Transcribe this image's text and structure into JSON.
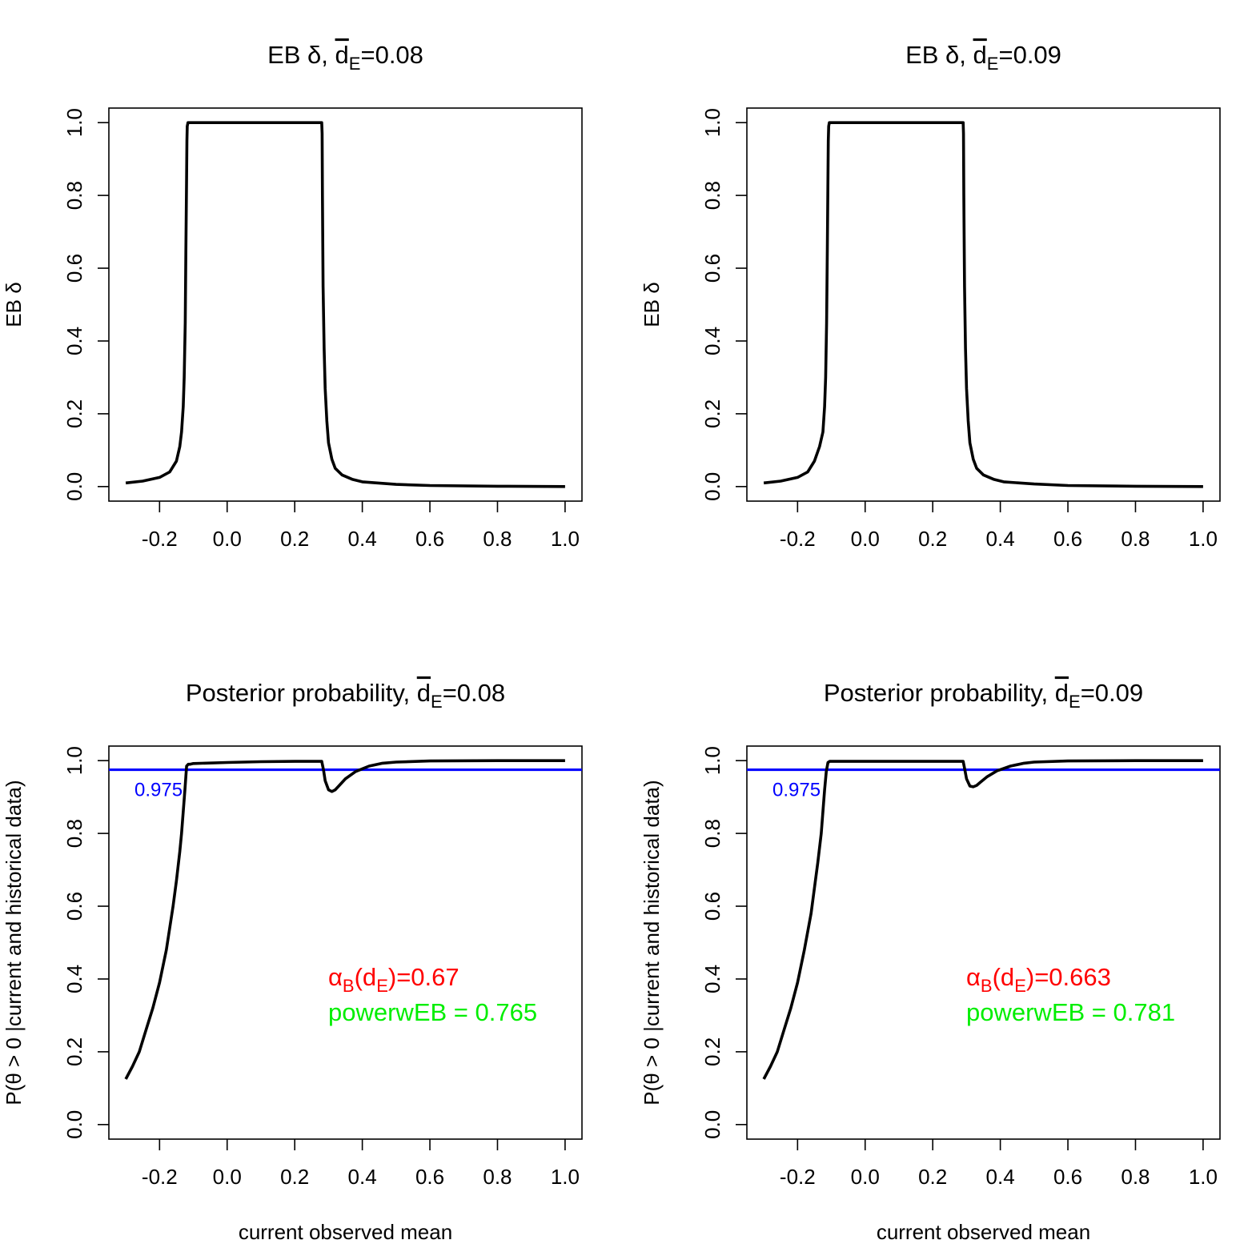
{
  "chart_data": [
    {
      "type": "line",
      "title": "EB δ, d̄E=0.08",
      "title_parts": {
        "prefix": "EB δ, ",
        "bar_letter": "d",
        "subscript": "E",
        "suffix": "=0.08"
      },
      "xlabel": "",
      "ylabel": "EB δ",
      "xlim": [
        -0.35,
        1.05
      ],
      "ylim": [
        -0.04,
        1.04
      ],
      "xticks": [
        "-0.2",
        "0.0",
        "0.2",
        "0.4",
        "0.6",
        "0.8",
        "1.0"
      ],
      "yticks": [
        "0.0",
        "0.2",
        "0.4",
        "0.6",
        "0.8",
        "1.0"
      ],
      "series": [
        {
          "name": "EB delta",
          "x": [
            -0.3,
            -0.25,
            -0.2,
            -0.17,
            -0.15,
            -0.14,
            -0.135,
            -0.13,
            -0.127,
            -0.124,
            -0.122,
            -0.12,
            -0.119,
            -0.118,
            -0.116,
            0.28,
            0.281,
            0.282,
            0.284,
            0.287,
            0.29,
            0.295,
            0.3,
            0.31,
            0.32,
            0.34,
            0.37,
            0.4,
            0.5,
            0.6,
            0.8,
            1.0
          ],
          "y": [
            0.01,
            0.015,
            0.025,
            0.04,
            0.07,
            0.11,
            0.15,
            0.22,
            0.3,
            0.45,
            0.65,
            0.85,
            0.95,
            0.99,
            1.0,
            1.0,
            0.97,
            0.8,
            0.55,
            0.38,
            0.27,
            0.18,
            0.12,
            0.075,
            0.05,
            0.032,
            0.02,
            0.013,
            0.006,
            0.003,
            0.001,
            0.0
          ]
        }
      ]
    },
    {
      "type": "line",
      "title": "EB δ, d̄E=0.09",
      "title_parts": {
        "prefix": "EB δ, ",
        "bar_letter": "d",
        "subscript": "E",
        "suffix": "=0.09"
      },
      "xlabel": "",
      "ylabel": "EB δ",
      "xlim": [
        -0.35,
        1.05
      ],
      "ylim": [
        -0.04,
        1.04
      ],
      "xticks": [
        "-0.2",
        "0.0",
        "0.2",
        "0.4",
        "0.6",
        "0.8",
        "1.0"
      ],
      "yticks": [
        "0.0",
        "0.2",
        "0.4",
        "0.6",
        "0.8",
        "1.0"
      ],
      "series": [
        {
          "name": "EB delta",
          "x": [
            -0.3,
            -0.25,
            -0.2,
            -0.17,
            -0.15,
            -0.135,
            -0.125,
            -0.12,
            -0.117,
            -0.114,
            -0.112,
            -0.11,
            -0.109,
            -0.108,
            -0.106,
            0.29,
            0.291,
            0.292,
            0.294,
            0.297,
            0.3,
            0.305,
            0.31,
            0.32,
            0.33,
            0.35,
            0.38,
            0.41,
            0.5,
            0.6,
            0.8,
            1.0
          ],
          "y": [
            0.01,
            0.015,
            0.025,
            0.04,
            0.07,
            0.11,
            0.15,
            0.22,
            0.3,
            0.45,
            0.65,
            0.85,
            0.95,
            0.99,
            1.0,
            1.0,
            0.97,
            0.8,
            0.55,
            0.38,
            0.27,
            0.18,
            0.12,
            0.075,
            0.05,
            0.032,
            0.02,
            0.013,
            0.007,
            0.003,
            0.001,
            0.0
          ]
        }
      ]
    },
    {
      "type": "line",
      "title": "Posterior probability, d̄E=0.08",
      "title_parts": {
        "prefix": "Posterior probability, ",
        "bar_letter": "d",
        "subscript": "E",
        "suffix": "=0.08"
      },
      "xlabel": "current observed mean",
      "ylabel": "P(θ > 0 |current and historical data)",
      "xlim": [
        -0.35,
        1.05
      ],
      "ylim": [
        -0.04,
        1.04
      ],
      "xticks": [
        "-0.2",
        "0.0",
        "0.2",
        "0.4",
        "0.6",
        "0.8",
        "1.0"
      ],
      "yticks": [
        "0.0",
        "0.2",
        "0.4",
        "0.6",
        "0.8",
        "1.0"
      ],
      "hline": {
        "y": 0.975,
        "label": "0.975",
        "color": "#0000ff"
      },
      "annotations": [
        {
          "prefix": "α",
          "sub1": "B",
          "mid": "(d",
          "sub2": "E",
          "suffix": ")=0.67",
          "color": "#ff0000"
        },
        {
          "text": "powerwEB =  0.765",
          "color": "#00ee00"
        }
      ],
      "series": [
        {
          "name": "posterior probability",
          "x": [
            -0.3,
            -0.28,
            -0.26,
            -0.24,
            -0.22,
            -0.2,
            -0.18,
            -0.16,
            -0.15,
            -0.14,
            -0.135,
            -0.13,
            -0.125,
            -0.12,
            -0.115,
            -0.11,
            -0.1,
            0.0,
            0.1,
            0.2,
            0.28,
            0.285,
            0.29,
            0.3,
            0.31,
            0.32,
            0.33,
            0.35,
            0.38,
            0.42,
            0.46,
            0.5,
            0.6,
            0.8,
            1.0
          ],
          "y": [
            0.125,
            0.16,
            0.2,
            0.26,
            0.32,
            0.39,
            0.48,
            0.6,
            0.67,
            0.75,
            0.8,
            0.86,
            0.92,
            0.985,
            0.99,
            0.99,
            0.992,
            0.995,
            0.997,
            0.998,
            0.998,
            0.975,
            0.945,
            0.92,
            0.915,
            0.92,
            0.93,
            0.95,
            0.97,
            0.985,
            0.993,
            0.996,
            0.999,
            1.0,
            1.0
          ]
        }
      ]
    },
    {
      "type": "line",
      "title": "Posterior probability, d̄E=0.09",
      "title_parts": {
        "prefix": "Posterior probability, ",
        "bar_letter": "d",
        "subscript": "E",
        "suffix": "=0.09"
      },
      "xlabel": "current observed mean",
      "ylabel": "P(θ > 0 |current and historical data)",
      "xlim": [
        -0.35,
        1.05
      ],
      "ylim": [
        -0.04,
        1.04
      ],
      "xticks": [
        "-0.2",
        "0.0",
        "0.2",
        "0.4",
        "0.6",
        "0.8",
        "1.0"
      ],
      "yticks": [
        "0.0",
        "0.2",
        "0.4",
        "0.6",
        "0.8",
        "1.0"
      ],
      "hline": {
        "y": 0.975,
        "label": "0.975",
        "color": "#0000ff"
      },
      "annotations": [
        {
          "prefix": "α",
          "sub1": "B",
          "mid": "(d",
          "sub2": "E",
          "suffix": ")=0.663",
          "color": "#ff0000"
        },
        {
          "text": "powerwEB =  0.781",
          "color": "#00ee00"
        }
      ],
      "series": [
        {
          "name": "posterior probability",
          "x": [
            -0.3,
            -0.28,
            -0.26,
            -0.24,
            -0.22,
            -0.2,
            -0.18,
            -0.16,
            -0.15,
            -0.14,
            -0.13,
            -0.125,
            -0.12,
            -0.115,
            -0.11,
            -0.105,
            -0.1,
            0.0,
            0.1,
            0.2,
            0.29,
            0.295,
            0.3,
            0.31,
            0.32,
            0.33,
            0.34,
            0.36,
            0.39,
            0.43,
            0.47,
            0.5,
            0.6,
            0.8,
            1.0
          ],
          "y": [
            0.125,
            0.16,
            0.2,
            0.26,
            0.32,
            0.39,
            0.48,
            0.58,
            0.65,
            0.72,
            0.8,
            0.86,
            0.92,
            0.97,
            0.995,
            0.998,
            0.998,
            0.998,
            0.998,
            0.998,
            0.998,
            0.975,
            0.95,
            0.93,
            0.928,
            0.932,
            0.94,
            0.955,
            0.972,
            0.985,
            0.993,
            0.996,
            0.999,
            1.0,
            1.0
          ]
        }
      ]
    }
  ]
}
